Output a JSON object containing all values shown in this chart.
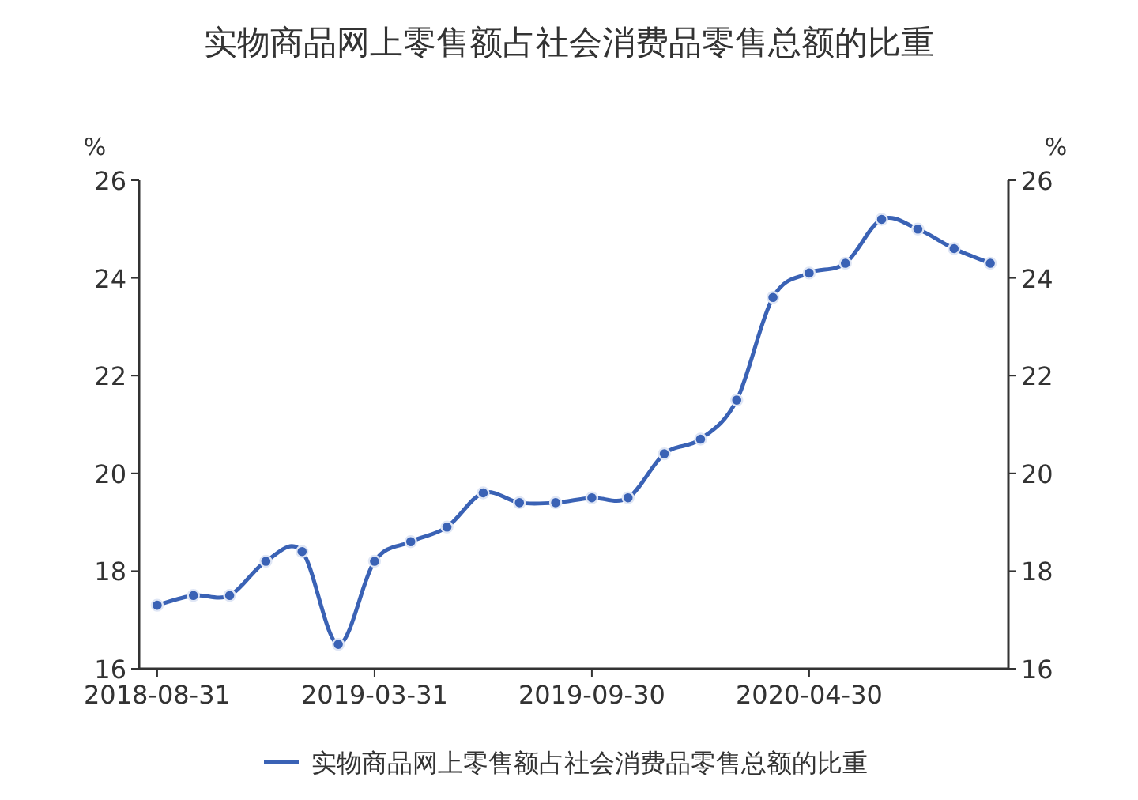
{
  "chart_data": {
    "type": "line",
    "title": "实物商品网上零售额占社会消费品零售总额的比重",
    "ylabel": "%",
    "y2label": "%",
    "categories": [
      "2018-08-31",
      null,
      null,
      null,
      null,
      null,
      "2019-03-31",
      null,
      null,
      null,
      null,
      null,
      "2019-09-30",
      null,
      null,
      null,
      null,
      null,
      "2020-04-30",
      null,
      null,
      null,
      null,
      null
    ],
    "series": [
      {
        "name": "实物商品网上零售额占社会消费品零售总额的比重",
        "color": "#3a62b5",
        "values": [
          17.3,
          17.5,
          17.5,
          18.2,
          18.4,
          16.5,
          18.2,
          18.6,
          18.9,
          19.6,
          19.4,
          19.4,
          19.5,
          19.5,
          20.4,
          20.7,
          21.5,
          23.6,
          24.1,
          24.3,
          25.2,
          25.0,
          24.6,
          24.3
        ]
      }
    ],
    "ylim": [
      16,
      26
    ],
    "yticks": [
      16,
      18,
      20,
      22,
      24,
      26
    ],
    "y2lim": [
      16,
      26
    ],
    "y2ticks": [
      16,
      18,
      20,
      22,
      24,
      26
    ],
    "marker": "circle",
    "line_style": "solid",
    "grid": false,
    "legend": "bottom"
  }
}
